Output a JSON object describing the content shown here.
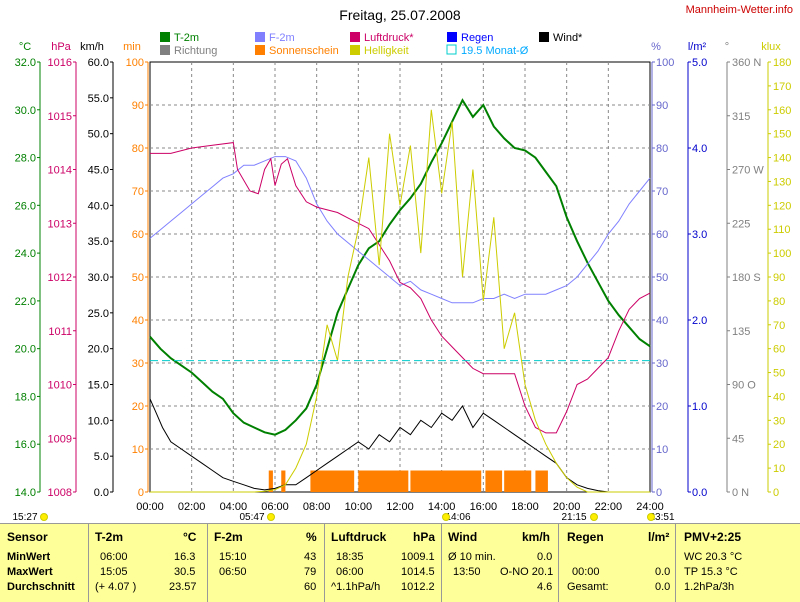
{
  "header": {
    "title": "Freitag, 25.07.2008",
    "site": "Mannheim-Wetter.info"
  },
  "legend": {
    "items": [
      {
        "label": "T-2m",
        "color": "#008000"
      },
      {
        "label": "F-2m",
        "color": "#8080ff"
      },
      {
        "label": "Luftdruck*",
        "color": "#cc0066"
      },
      {
        "label": "Regen",
        "color": "#0000ff"
      },
      {
        "label": "Wind*",
        "color": "#000000"
      },
      {
        "label": "Richtung",
        "color": "#808080"
      },
      {
        "label": "Sonnenschein",
        "color": "#ff8000"
      },
      {
        "label": "Helligkeit",
        "color": "#cccc00"
      },
      {
        "label": "19.5 Monat-Ø",
        "color": "#00cccc"
      }
    ]
  },
  "axes_units": {
    "temp": "°C",
    "press": "hPa",
    "wind": "km/h",
    "sun": "min",
    "hum": "%",
    "rain": "l/m²",
    "dir": "°",
    "lux": "klux"
  },
  "chart_data": {
    "type": "line",
    "title": "Freitag, 25.07.2008",
    "x_ticks": [
      "00:00",
      "02:00",
      "04:00",
      "06:00",
      "08:00",
      "10:00",
      "12:00",
      "14:00",
      "16:00",
      "18:00",
      "20:00",
      "22:00",
      "24:00"
    ],
    "xlim": [
      0,
      24
    ],
    "left_axes": {
      "temp_c": {
        "ticks": [
          "14.0",
          "16.0",
          "18.0",
          "20.0",
          "22.0",
          "24.0",
          "26.0",
          "28.0",
          "30.0",
          "32.0"
        ],
        "range": [
          14,
          32
        ],
        "color": "#008000"
      },
      "pressure_hpa": {
        "ticks": [
          "1008",
          "1009",
          "1010",
          "1011",
          "1012",
          "1013",
          "1014",
          "1015",
          "1016"
        ],
        "range": [
          1008,
          1016
        ],
        "color": "#cc0066"
      },
      "wind_kmh": {
        "ticks": [
          "0.0",
          "5.0",
          "10.0",
          "15.0",
          "20.0",
          "25.0",
          "30.0",
          "35.0",
          "40.0",
          "45.0",
          "50.0",
          "55.0",
          "60.0"
        ],
        "range": [
          0,
          60
        ],
        "color": "#000000"
      },
      "sun_min": {
        "ticks": [
          "0",
          "10",
          "20",
          "30",
          "40",
          "50",
          "60",
          "70",
          "80",
          "90",
          "100"
        ],
        "range": [
          0,
          100
        ],
        "color": "#ff8000"
      }
    },
    "right_axes": {
      "humidity_pct": {
        "ticks": [
          "0",
          "10",
          "20",
          "30",
          "40",
          "50",
          "60",
          "70",
          "80",
          "90",
          "100"
        ],
        "range": [
          0,
          100
        ],
        "color": "#6666cc"
      },
      "rain_lm2": {
        "ticks": [
          "0.0",
          "1.0",
          "2.0",
          "3.0",
          "4.0",
          "5.0"
        ],
        "range": [
          0,
          5
        ],
        "color": "#0000cc"
      },
      "direction_deg": {
        "ticks": [
          "0 N",
          "45",
          "90 O",
          "135",
          "180 S",
          "225",
          "270 W",
          "315",
          "360 N"
        ],
        "range": [
          0,
          360
        ],
        "color": "#808080"
      },
      "light_klux": {
        "ticks": [
          "0",
          "10",
          "20",
          "30",
          "40",
          "50",
          "60",
          "70",
          "80",
          "90",
          "100",
          "110",
          "120",
          "130",
          "140",
          "150",
          "160",
          "170",
          "180"
        ],
        "range": [
          0,
          180
        ],
        "color": "#cccc00"
      }
    },
    "series": [
      {
        "name": "T-2m",
        "axis": "temp_c",
        "color": "#008000",
        "x": [
          0,
          0.5,
          1,
          1.5,
          2,
          2.5,
          3,
          3.5,
          4,
          4.5,
          5,
          5.5,
          6,
          6.5,
          7,
          7.5,
          8,
          8.5,
          9,
          9.5,
          10,
          10.5,
          11,
          11.5,
          12,
          12.5,
          13,
          13.5,
          14,
          14.5,
          15,
          15.5,
          16,
          16.5,
          17,
          17.5,
          18,
          18.5,
          19,
          19.5,
          20,
          20.5,
          21,
          21.5,
          22,
          22.5,
          23,
          23.5,
          24
        ],
        "y": [
          20.5,
          20.0,
          19.6,
          19.3,
          19.0,
          18.6,
          18.2,
          17.9,
          17.3,
          16.9,
          16.7,
          16.5,
          16.4,
          16.6,
          17.0,
          17.5,
          18.5,
          20.0,
          21.5,
          22.5,
          23.5,
          24.2,
          24.5,
          25.2,
          25.8,
          26.3,
          26.9,
          27.8,
          28.6,
          29.5,
          30.4,
          29.7,
          30.2,
          29.3,
          28.8,
          28.4,
          28.3,
          28.0,
          27.4,
          26.8,
          25.5,
          24.5,
          23.6,
          22.8,
          22.0,
          21.4,
          20.9,
          20.4,
          20.1
        ]
      },
      {
        "name": "F-2m",
        "axis": "humidity_pct",
        "color": "#8080ff",
        "x": [
          0,
          0.5,
          1,
          1.5,
          2,
          2.5,
          3,
          3.5,
          4,
          4.5,
          5,
          5.5,
          6,
          6.5,
          7,
          7.5,
          8,
          8.5,
          9,
          9.5,
          10,
          10.5,
          11,
          11.5,
          12,
          12.5,
          13,
          13.5,
          14,
          14.5,
          15,
          15.5,
          16,
          16.5,
          17,
          17.5,
          18,
          18.5,
          19,
          19.5,
          20,
          20.5,
          21,
          21.5,
          22,
          22.5,
          23,
          23.5,
          24
        ],
        "y": [
          59,
          61,
          63,
          65,
          67,
          69,
          71,
          73,
          74,
          76,
          76,
          77,
          78,
          78,
          77,
          73,
          67,
          63,
          60,
          58,
          56,
          54,
          52,
          50,
          48,
          49,
          47,
          46,
          45,
          44,
          44,
          44,
          45,
          45,
          46,
          45,
          46,
          46,
          46,
          47,
          48,
          50,
          53,
          56,
          60,
          63,
          67,
          70,
          73
        ]
      },
      {
        "name": "Luftdruck*",
        "axis": "pressure_hpa",
        "color": "#cc0066",
        "x": [
          0,
          1,
          2,
          3,
          4,
          4.2,
          4.8,
          5.2,
          5.5,
          5.8,
          6.0,
          6.3,
          6.6,
          7.0,
          7.5,
          8,
          9,
          9.5,
          10,
          10.5,
          11,
          11.5,
          12,
          12.5,
          13,
          13.5,
          14,
          14.5,
          15,
          15.5,
          16,
          16.5,
          17,
          17.5,
          18,
          18.5,
          19,
          19.5,
          20,
          20.5,
          21,
          21.5,
          22,
          22.5,
          23,
          23.5,
          24
        ],
        "y": [
          1014.3,
          1014.3,
          1014.4,
          1014.45,
          1014.5,
          1014.0,
          1013.6,
          1013.55,
          1014.0,
          1014.2,
          1013.7,
          1014.1,
          1014.2,
          1013.7,
          1013.4,
          1013.3,
          1013.2,
          1013.1,
          1013.0,
          1012.9,
          1012.6,
          1012.3,
          1011.9,
          1011.8,
          1011.6,
          1011.2,
          1010.9,
          1010.7,
          1010.5,
          1010.3,
          1010.2,
          1010.2,
          1010.2,
          1010.2,
          1009.6,
          1009.2,
          1009.1,
          1009.1,
          1009.5,
          1010.0,
          1010.1,
          1010.3,
          1010.5,
          1011.0,
          1011.4,
          1011.6,
          1011.7
        ]
      },
      {
        "name": "Wind*",
        "axis": "wind_kmh",
        "color": "#000000",
        "x": [
          0,
          0.3,
          0.6,
          1,
          1.5,
          2,
          2.5,
          3,
          3.5,
          4,
          4.5,
          5,
          5.5,
          6,
          6.5,
          7,
          7.5,
          8,
          8.5,
          9,
          9.5,
          10,
          10.5,
          11,
          11.5,
          12,
          12.5,
          13,
          13.5,
          14,
          14.5,
          15,
          15.5,
          16,
          16.5,
          17,
          17.5,
          18,
          18.5,
          19,
          19.5,
          20,
          20.5,
          21,
          21.5,
          22
        ],
        "y": [
          13,
          11,
          9,
          7,
          6,
          5,
          4,
          3,
          2,
          1.5,
          1,
          0.5,
          0.3,
          0.5,
          1,
          1,
          2,
          3,
          4,
          5,
          6,
          7,
          6,
          8,
          7,
          9,
          8,
          10,
          9,
          11,
          10,
          12,
          9,
          11,
          10,
          9,
          8,
          7,
          6,
          5,
          4,
          2,
          1,
          0.5,
          0.2,
          0
        ]
      },
      {
        "name": "Helligkeit",
        "axis": "light_klux",
        "color": "#cccc00",
        "x": [
          0,
          5,
          5.5,
          6,
          6.5,
          7,
          7.5,
          8,
          8.5,
          9,
          9.5,
          10,
          10.5,
          11,
          11.5,
          12,
          12.5,
          13,
          13.5,
          14,
          14.5,
          15,
          15.5,
          16,
          16.5,
          17,
          17.5,
          18,
          18.5,
          19,
          19.5,
          20,
          20.5,
          21,
          24
        ],
        "y": [
          0,
          0,
          0.3,
          1,
          3,
          10,
          20,
          40,
          70,
          55,
          90,
          110,
          140,
          95,
          150,
          120,
          145,
          100,
          160,
          125,
          155,
          90,
          135,
          80,
          115,
          60,
          75,
          45,
          30,
          20,
          12,
          6,
          2,
          0,
          0
        ]
      },
      {
        "name": "19.5 Monat-Ø",
        "axis": "temp_c",
        "color": "#00cccc",
        "x": [
          0,
          24
        ],
        "y": [
          19.5,
          19.5
        ]
      }
    ]
  },
  "summary": {
    "sensor": {
      "header": "Sensor",
      "rows": [
        "MinWert",
        "MaxWert",
        "Durchschnitt"
      ]
    },
    "t2m": {
      "header": "T-2m",
      "unit": "°C",
      "rows": [
        [
          "06:00",
          "16.3"
        ],
        [
          "15:05",
          "30.5"
        ],
        [
          "(+ 4.07 )",
          "23.57"
        ]
      ]
    },
    "f2m": {
      "header": "F-2m",
      "unit": "%",
      "rows": [
        [
          "15:10",
          "43"
        ],
        [
          "06:50",
          "79"
        ],
        [
          "",
          "60"
        ]
      ]
    },
    "luftdruck": {
      "header": "Luftdruck",
      "unit": "hPa",
      "rows": [
        [
          "18:35",
          "1009.1"
        ],
        [
          "06:00",
          "1014.5"
        ],
        [
          "^1.1hPa/h",
          "1012.2"
        ]
      ]
    },
    "wind": {
      "header": "Wind",
      "unit": "km/h",
      "rows": [
        [
          "Ø 10 min.",
          "0.0"
        ],
        [
          "13:50",
          "O-NO 20.1"
        ],
        [
          "",
          "4.6"
        ]
      ]
    },
    "regen": {
      "header": "Regen",
      "unit": "l/m²",
      "rows": [
        [
          "",
          ""
        ],
        [
          "00:00",
          "0.0"
        ],
        [
          "Gesamt:",
          "0.0"
        ]
      ]
    },
    "pmv": {
      "header": "PMV+2:25",
      "rows": [
        "WC 20.3 °C",
        "TP 15.3 °C",
        "1.2hPa/3h"
      ]
    }
  },
  "sun_markers": {
    "sunrise": "05:47",
    "sunset": "21:15",
    "moonset": "15:27",
    "moonrise_left": "14:06",
    "moonrise_right": "23:51"
  }
}
